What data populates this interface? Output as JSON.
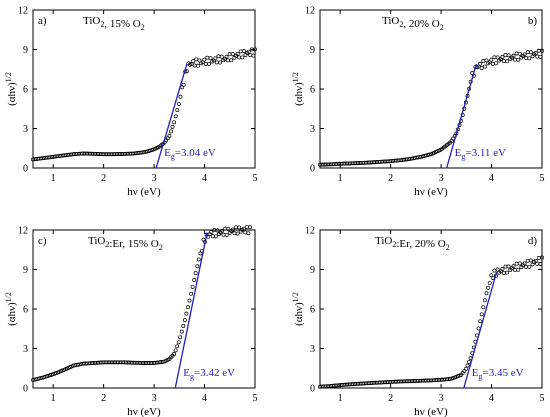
{
  "chart_data": [
    {
      "type": "scatter",
      "panel": "a)",
      "sample": "TiO2, 15% O2",
      "xlabel": "hν (eV)",
      "ylabel": "(αhν)1/2",
      "xlim": [
        0.6,
        5
      ],
      "ylim": [
        0,
        12
      ],
      "xticks": [
        1,
        2,
        3,
        4,
        5
      ],
      "yticks": [
        0,
        3,
        6,
        9,
        12
      ],
      "eg_label": "Eg=3.04 eV",
      "eg": 3.04,
      "fit_line": [
        [
          3.04,
          0
        ],
        [
          3.65,
          7.9
        ]
      ],
      "x": [
        0.6,
        0.8,
        1.0,
        1.2,
        1.4,
        1.6,
        1.8,
        2.0,
        2.2,
        2.4,
        2.6,
        2.8,
        2.95,
        3.1,
        3.2,
        3.3,
        3.4,
        3.5,
        3.6,
        3.65,
        3.7,
        3.8,
        3.9,
        4.0,
        4.2,
        4.4,
        4.6,
        4.8,
        5.0
      ],
      "y": [
        0.65,
        0.75,
        0.85,
        0.95,
        1.05,
        1.1,
        1.08,
        1.05,
        1.05,
        1.07,
        1.1,
        1.2,
        1.35,
        1.6,
        1.9,
        2.4,
        3.5,
        5.0,
        6.8,
        7.6,
        7.9,
        8.0,
        8.0,
        8.1,
        8.2,
        8.3,
        8.5,
        8.7,
        8.8
      ]
    },
    {
      "type": "scatter",
      "panel": "b)",
      "sample": "TiO2, 20% O2",
      "xlabel": "hν (eV)",
      "ylabel": "(αhν)1/2",
      "xlim": [
        0.6,
        5
      ],
      "ylim": [
        0,
        12
      ],
      "xticks": [
        1,
        2,
        3,
        4,
        5
      ],
      "yticks": [
        0,
        3,
        6,
        9,
        12
      ],
      "eg_label": "Eg=3.11 eV",
      "eg": 3.11,
      "fit_line": [
        [
          3.11,
          0
        ],
        [
          3.7,
          7.9
        ]
      ],
      "x": [
        0.6,
        0.8,
        1.0,
        1.2,
        1.4,
        1.6,
        1.8,
        2.0,
        2.2,
        2.4,
        2.6,
        2.8,
        3.0,
        3.2,
        3.3,
        3.4,
        3.5,
        3.6,
        3.7,
        3.8,
        3.9,
        4.0,
        4.2,
        4.4,
        4.6,
        4.8,
        5.0
      ],
      "y": [
        0.25,
        0.28,
        0.32,
        0.35,
        0.38,
        0.42,
        0.47,
        0.52,
        0.6,
        0.7,
        0.85,
        1.05,
        1.4,
        2.0,
        2.6,
        3.6,
        5.1,
        6.8,
        7.7,
        7.8,
        8.0,
        8.1,
        8.3,
        8.4,
        8.5,
        8.6,
        8.7
      ]
    },
    {
      "type": "scatter",
      "panel": "c)",
      "sample": "TiO2:Er, 15% O2",
      "xlabel": "hν (eV)",
      "ylabel": "(αhν)1/2",
      "xlim": [
        0.6,
        5
      ],
      "ylim": [
        0,
        12
      ],
      "xticks": [
        1,
        2,
        3,
        4,
        5
      ],
      "yticks": [
        0,
        3,
        6,
        9,
        12
      ],
      "eg_label": "Eg=3.42 eV",
      "eg": 3.42,
      "fit_line": [
        [
          3.42,
          0
        ],
        [
          4.05,
          11.8
        ]
      ],
      "x": [
        0.6,
        0.8,
        1.0,
        1.2,
        1.4,
        1.6,
        1.8,
        2.0,
        2.2,
        2.4,
        2.6,
        2.8,
        3.0,
        3.2,
        3.3,
        3.4,
        3.5,
        3.6,
        3.7,
        3.8,
        3.9,
        4.0,
        4.1,
        4.3,
        4.5,
        4.7,
        4.9
      ],
      "y": [
        0.6,
        0.8,
        1.05,
        1.35,
        1.7,
        1.85,
        1.9,
        1.95,
        1.95,
        1.95,
        1.92,
        1.9,
        1.9,
        2.0,
        2.2,
        2.6,
        3.6,
        5.0,
        6.6,
        8.3,
        10.0,
        11.3,
        11.7,
        11.8,
        11.9,
        12.0,
        12.0
      ]
    },
    {
      "type": "scatter",
      "panel": "d)",
      "sample": "TiO2:Er, 20% O2",
      "xlabel": "hν (eV)",
      "ylabel": "(αhν)1/2",
      "xlim": [
        0.6,
        5
      ],
      "ylim": [
        0,
        12
      ],
      "xticks": [
        1,
        2,
        3,
        4,
        5
      ],
      "yticks": [
        0,
        3,
        6,
        9,
        12
      ],
      "eg_label": "Eg=3.45 eV",
      "eg": 3.45,
      "fit_line": [
        [
          3.45,
          0
        ],
        [
          4.1,
          8.8
        ]
      ],
      "x": [
        0.6,
        0.8,
        1.0,
        1.2,
        1.4,
        1.6,
        1.8,
        2.0,
        2.2,
        2.4,
        2.6,
        2.8,
        3.0,
        3.2,
        3.4,
        3.5,
        3.6,
        3.7,
        3.8,
        3.9,
        4.0,
        4.1,
        4.3,
        4.5,
        4.7,
        4.9,
        5.0
      ],
      "y": [
        0.1,
        0.15,
        0.22,
        0.28,
        0.33,
        0.38,
        0.42,
        0.46,
        0.5,
        0.52,
        0.55,
        0.58,
        0.62,
        0.7,
        1.0,
        1.5,
        2.4,
        3.8,
        5.5,
        7.2,
        8.5,
        8.8,
        9.0,
        9.2,
        9.4,
        9.6,
        9.7
      ]
    }
  ]
}
